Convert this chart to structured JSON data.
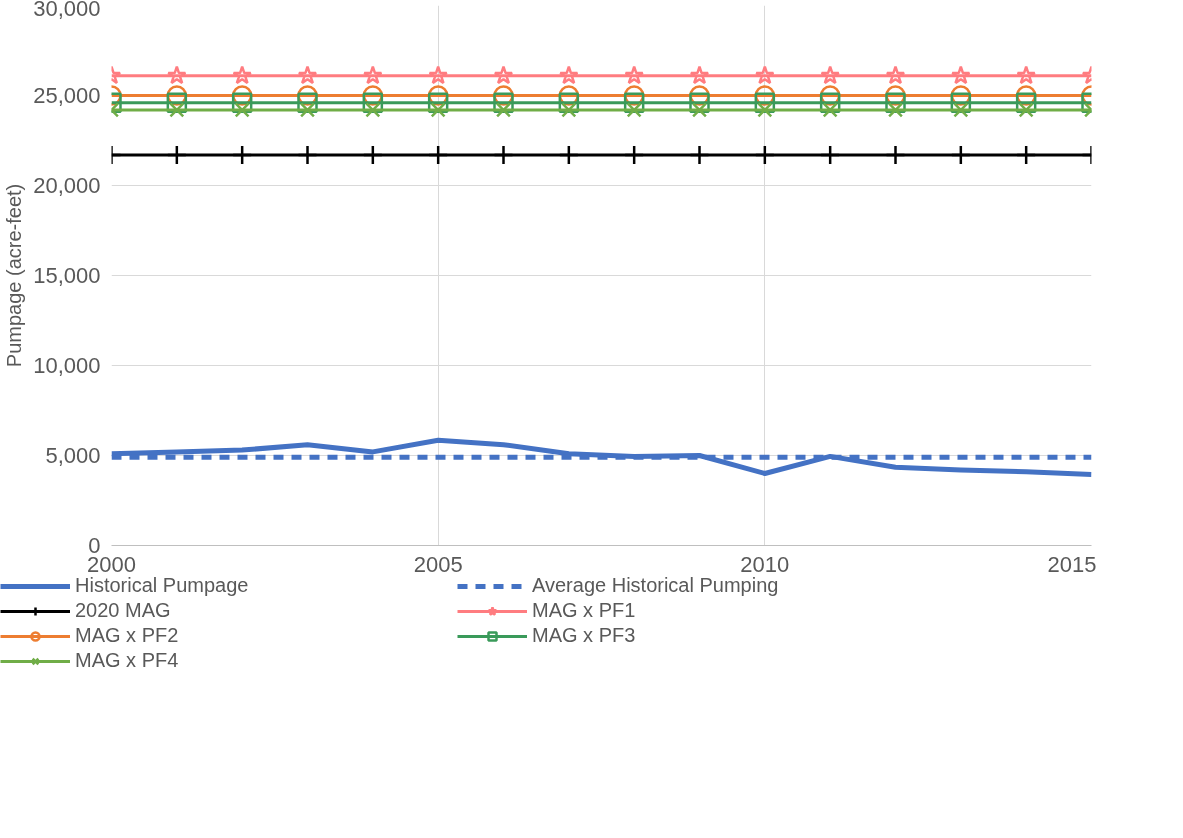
{
  "chart_data": {
    "type": "line",
    "ylabel": "Pumpage (acre-feet)",
    "x": [
      2000,
      2001,
      2002,
      2003,
      2004,
      2005,
      2006,
      2007,
      2008,
      2009,
      2010,
      2011,
      2012,
      2013,
      2014,
      2015
    ],
    "series": [
      {
        "name": "Historical Pumpage",
        "color": "#4472c4",
        "marker": "none",
        "line_style": "solid",
        "values": [
          5100,
          5200,
          5300,
          5600,
          5200,
          5850,
          5600,
          5100,
          4950,
          5000,
          4000,
          4950,
          4350,
          4200,
          4100,
          3950
        ]
      },
      {
        "name": "Average Historical Pumping",
        "color": "#4472c4",
        "marker": "none",
        "line_style": "dashed",
        "values": [
          4900,
          4900,
          4900,
          4900,
          4900,
          4900,
          4900,
          4900,
          4900,
          4900,
          4900,
          4900,
          4900,
          4900,
          4900,
          4900
        ]
      },
      {
        "name": "2020 MAG",
        "color": "#000000",
        "marker": "cross",
        "line_style": "solid",
        "values": [
          21700,
          21700,
          21700,
          21700,
          21700,
          21700,
          21700,
          21700,
          21700,
          21700,
          21700,
          21700,
          21700,
          21700,
          21700,
          21700
        ]
      },
      {
        "name": "MAG x PF1",
        "color": "#ff7c80",
        "marker": "star",
        "line_style": "solid",
        "values": [
          26100,
          26100,
          26100,
          26100,
          26100,
          26100,
          26100,
          26100,
          26100,
          26100,
          26100,
          26100,
          26100,
          26100,
          26100,
          26100
        ]
      },
      {
        "name": "MAG x PF2",
        "color": "#ed7d31",
        "marker": "circle",
        "line_style": "solid",
        "values": [
          25000,
          25000,
          25000,
          25000,
          25000,
          25000,
          25000,
          25000,
          25000,
          25000,
          25000,
          25000,
          25000,
          25000,
          25000,
          25000
        ]
      },
      {
        "name": "MAG x PF3",
        "color": "#3a9a5a",
        "marker": "square",
        "line_style": "solid",
        "values": [
          24600,
          24600,
          24600,
          24600,
          24600,
          24600,
          24600,
          24600,
          24600,
          24600,
          24600,
          24600,
          24600,
          24600,
          24600,
          24600
        ]
      },
      {
        "name": "MAG x PF4",
        "color": "#70ad47",
        "marker": "x",
        "line_style": "solid",
        "values": [
          24200,
          24200,
          24200,
          24200,
          24200,
          24200,
          24200,
          24200,
          24200,
          24200,
          24200,
          24200,
          24200,
          24200,
          24200,
          24200
        ]
      }
    ],
    "xlim": [
      2000,
      2015
    ],
    "xticks": [
      2000,
      2005,
      2010,
      2015
    ],
    "ylim": [
      0,
      30000
    ],
    "yticks": [
      {
        "value": 0,
        "label": "0"
      },
      {
        "value": 5000,
        "label": "5,000"
      },
      {
        "value": 10000,
        "label": "10,000"
      },
      {
        "value": 15000,
        "label": "15,000"
      },
      {
        "value": 20000,
        "label": "20,000"
      },
      {
        "value": 25000,
        "label": "25,000"
      },
      {
        "value": 30000,
        "label": "30,000"
      }
    ],
    "grid": true,
    "legend": "bottom"
  }
}
